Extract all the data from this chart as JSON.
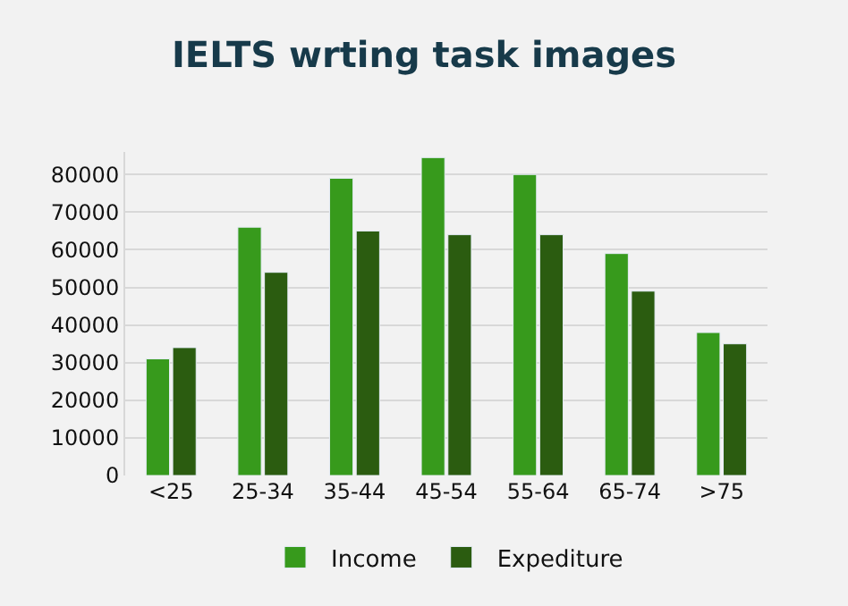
{
  "chart_data": {
    "type": "bar",
    "title": "IELTS wrting task images",
    "categories": [
      "<25",
      "25-34",
      "35-44",
      "45-54",
      "55-64",
      "65-74",
      ">75"
    ],
    "series": [
      {
        "name": "Income",
        "color": "#379a1c",
        "values": [
          31000,
          66000,
          79000,
          84500,
          80000,
          59000,
          38000
        ]
      },
      {
        "name": "Expediture",
        "color": "#2b5c10",
        "values": [
          34000,
          54000,
          65000,
          64000,
          64000,
          49000,
          35000
        ]
      }
    ],
    "ylim": [
      0,
      86000
    ],
    "yticks": [
      0,
      10000,
      20000,
      30000,
      40000,
      50000,
      60000,
      70000,
      80000
    ],
    "grid": "y",
    "legend": "bottom"
  }
}
